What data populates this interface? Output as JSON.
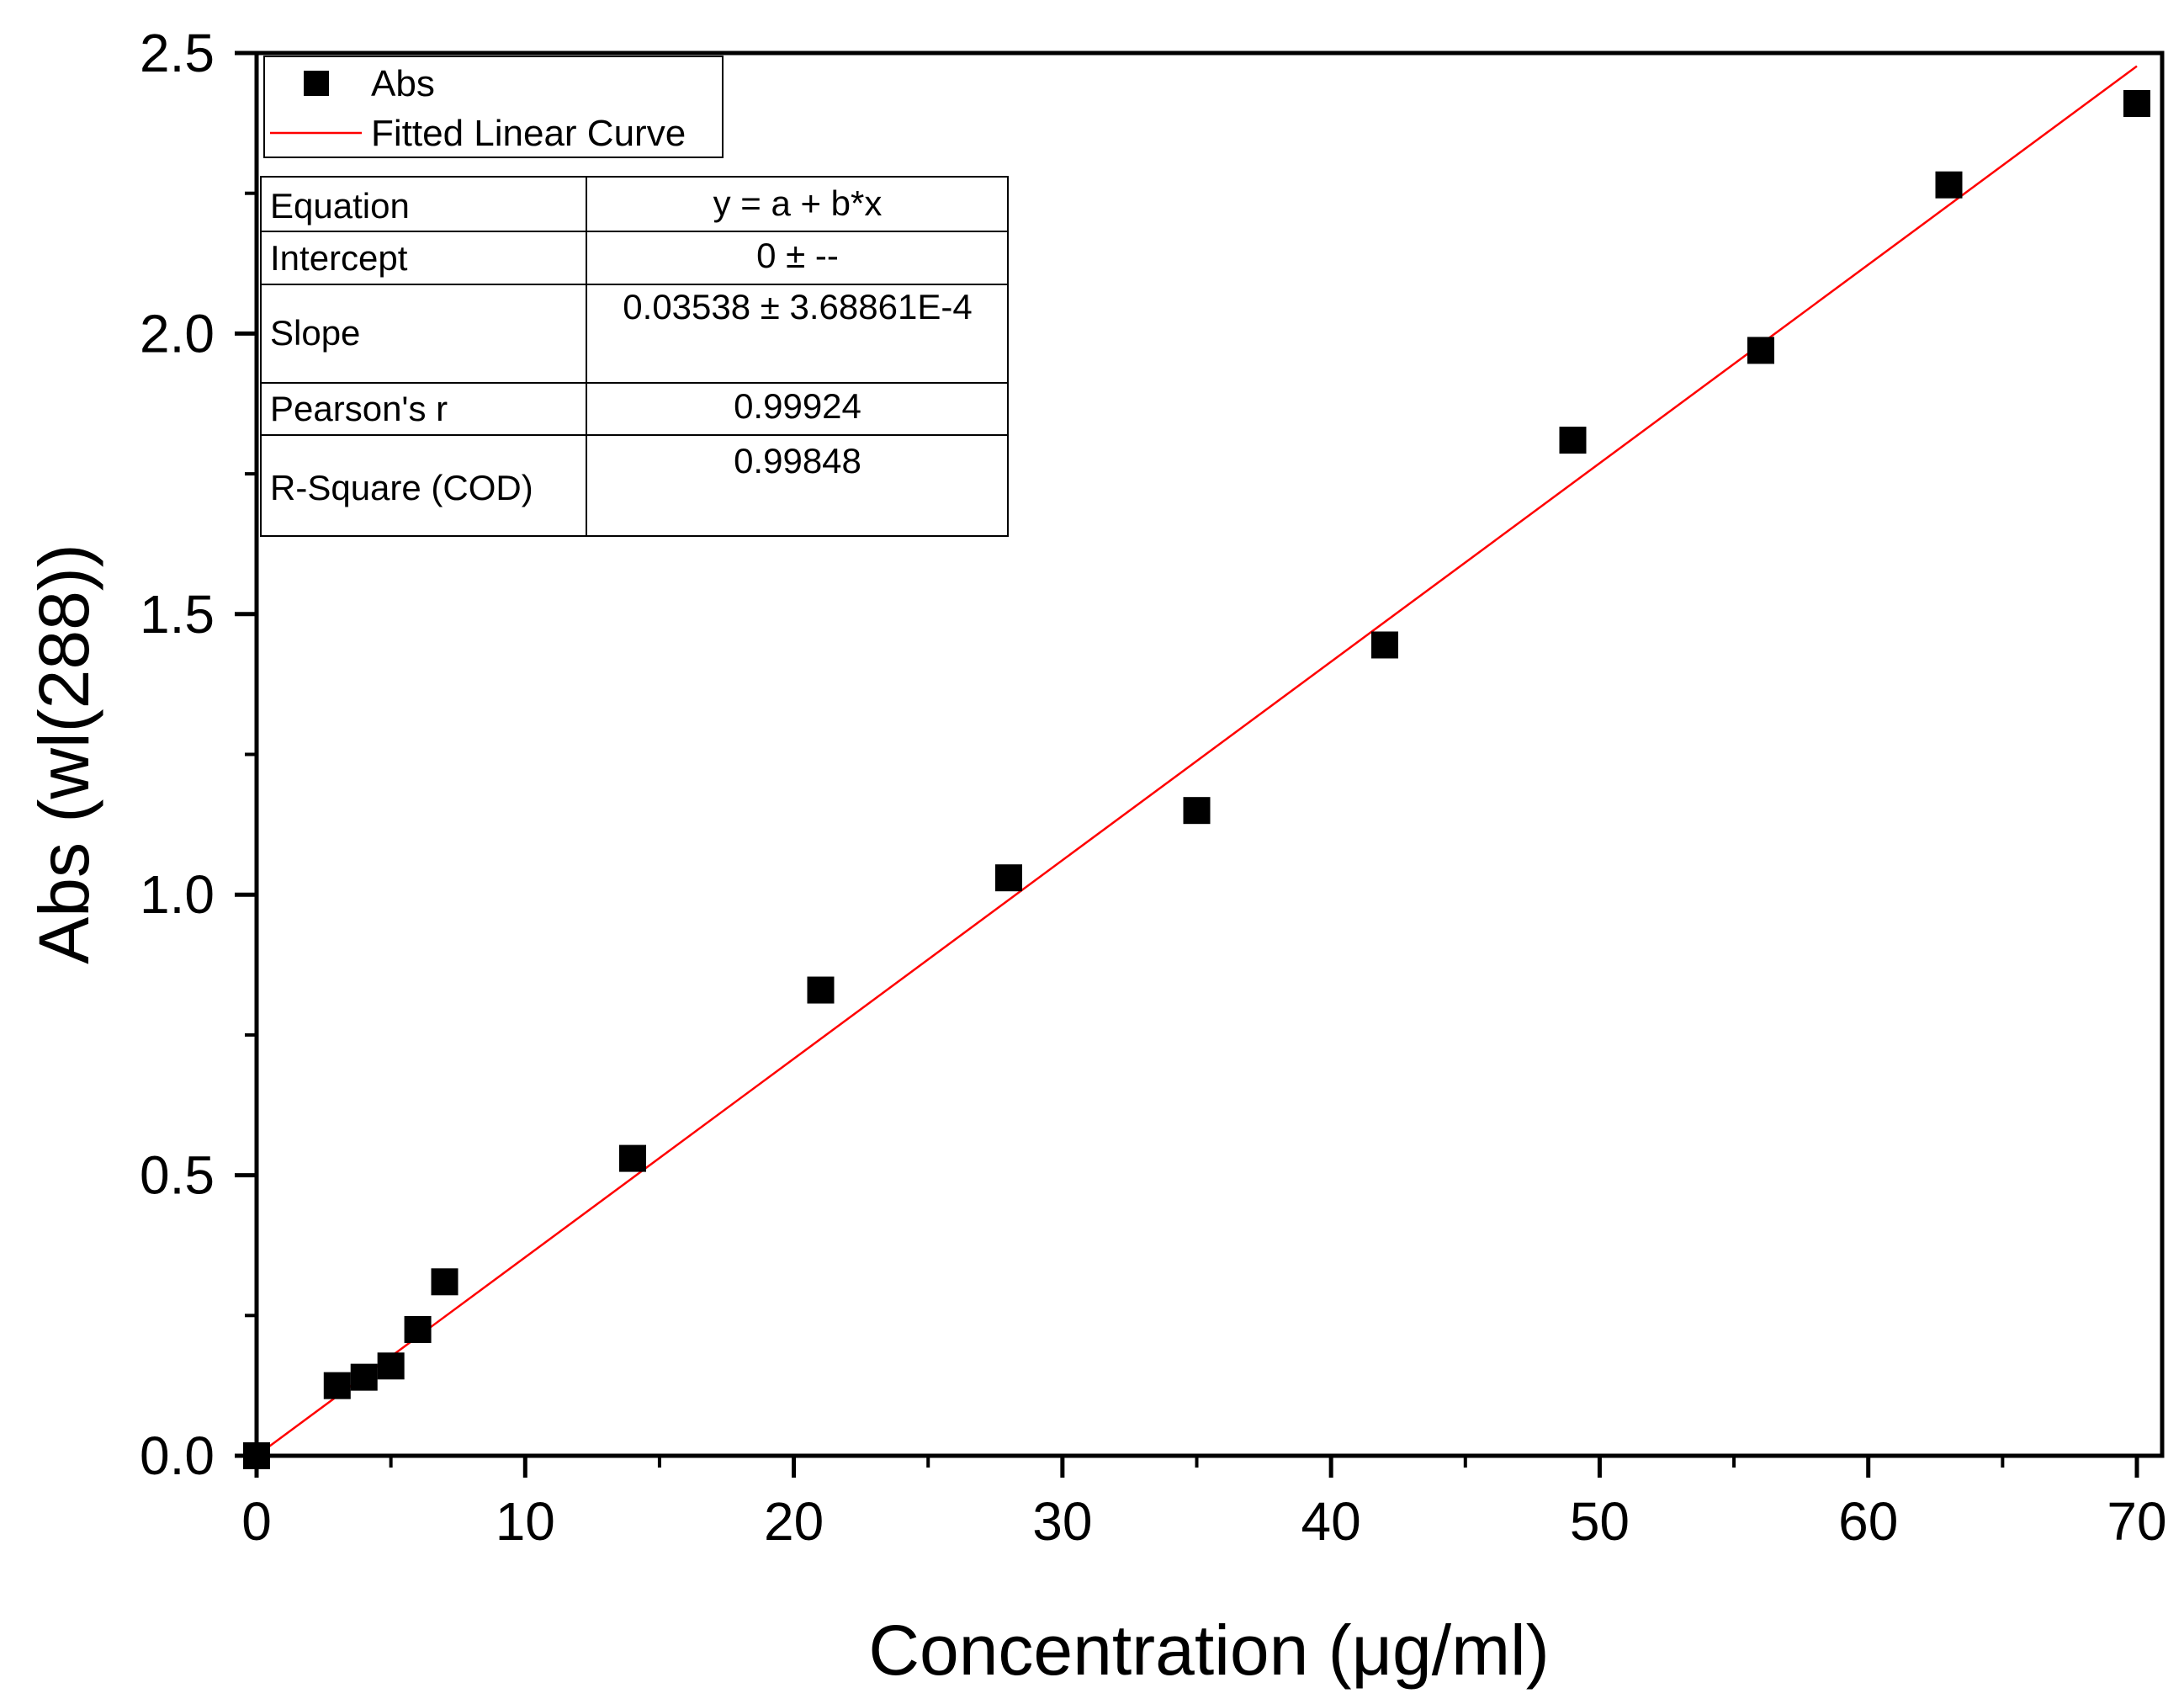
{
  "chart_data": {
    "type": "scatter",
    "xlabel": "Concentration (μg/ml)",
    "ylabel": "Abs (wl(288))",
    "xlim": [
      0,
      71
    ],
    "ylim": [
      0,
      2.5
    ],
    "x_ticks": [
      0,
      10,
      20,
      30,
      40,
      50,
      60,
      70
    ],
    "y_ticks": [
      0.0,
      0.5,
      1.0,
      1.5,
      2.0,
      2.5
    ],
    "x_tick_labels": [
      "0",
      "10",
      "20",
      "30",
      "40",
      "50",
      "60",
      "70"
    ],
    "y_tick_labels": [
      "0.0",
      "0.5",
      "1.0",
      "1.5",
      "2.0",
      "2.5"
    ],
    "series": [
      {
        "name": "Abs",
        "marker": "square",
        "color": "#000000",
        "x": [
          0,
          3,
          4,
          5,
          6,
          7,
          14,
          21,
          28,
          35,
          42,
          49,
          56,
          63,
          70
        ],
        "y": [
          0.0,
          0.125,
          0.14,
          0.16,
          0.225,
          0.31,
          0.53,
          0.83,
          1.03,
          1.15,
          1.445,
          1.81,
          1.97,
          2.265,
          2.41
        ]
      },
      {
        "name": "Fitted Linear Curve",
        "type": "line",
        "color": "#ff0000",
        "intercept": 0,
        "slope": 0.03538,
        "x_range": [
          0,
          70
        ]
      }
    ],
    "legend": {
      "position": "top-left",
      "entries": [
        "Abs",
        "Fitted Linear Curve"
      ]
    },
    "fit_table": {
      "rows": [
        {
          "label": "Equation",
          "value": "y = a + b*x"
        },
        {
          "label": "Intercept",
          "value": "0 ± --"
        },
        {
          "label": "Slope",
          "value": "0.03538 ± 3.68861E-4"
        },
        {
          "label": "Pearson's r",
          "value": "0.99924"
        },
        {
          "label": "R-Square (COD)",
          "value": "0.99848"
        }
      ]
    }
  }
}
